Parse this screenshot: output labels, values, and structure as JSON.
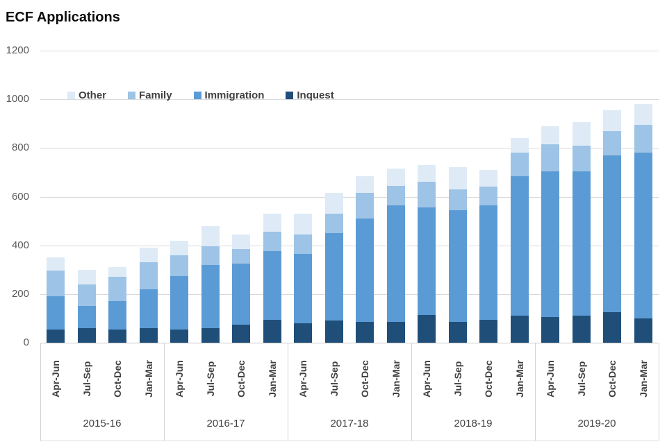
{
  "title": "ECF Applications",
  "colors": {
    "other": "#DEEBF7",
    "family": "#9DC3E6",
    "immigration": "#5B9BD5",
    "inquest": "#1F4E79",
    "gridline": "#D9D9D9",
    "axis_text": "#595959",
    "label_text": "#404040"
  },
  "chart_data": {
    "type": "bar",
    "stacked": true,
    "title": "ECF Applications",
    "xlabel": "",
    "ylabel": "",
    "ylim": [
      0,
      1200
    ],
    "yticks": [
      0,
      200,
      400,
      600,
      800,
      1000,
      1200
    ],
    "grid": true,
    "legend_position": "top-inside",
    "legend_order": [
      "Other",
      "Family",
      "Immigration",
      "Inquest"
    ],
    "groups": [
      {
        "label": "2015-16",
        "quarters": [
          "Apr-Jun",
          "Jul-Sep",
          "Oct-Dec",
          "Jan-Mar"
        ]
      },
      {
        "label": "2016-17",
        "quarters": [
          "Apr-Jun",
          "Jul-Sep",
          "Oct-Dec",
          "Jan-Mar"
        ]
      },
      {
        "label": "2017-18",
        "quarters": [
          "Apr-Jun",
          "Jul-Sep",
          "Oct-Dec",
          "Jan-Mar"
        ]
      },
      {
        "label": "2018-19",
        "quarters": [
          "Apr-Jun",
          "Jul-Sep",
          "Oct-Dec",
          "Jan-Mar"
        ]
      },
      {
        "label": "2019-20",
        "quarters": [
          "Apr-Jun",
          "Jul-Sep",
          "Oct-Dec",
          "Jan-Mar"
        ]
      }
    ],
    "series": [
      {
        "name": "Inquest",
        "color": "#1F4E79",
        "values": [
          55,
          60,
          55,
          60,
          55,
          60,
          75,
          95,
          80,
          90,
          85,
          85,
          115,
          85,
          95,
          110,
          105,
          110,
          125,
          100
        ]
      },
      {
        "name": "Immigration",
        "color": "#5B9BD5",
        "values": [
          135,
          90,
          115,
          160,
          220,
          260,
          250,
          280,
          285,
          360,
          425,
          480,
          440,
          460,
          470,
          575,
          600,
          595,
          645,
          680
        ]
      },
      {
        "name": "Family",
        "color": "#9DC3E6",
        "values": [
          105,
          90,
          100,
          110,
          85,
          75,
          60,
          80,
          80,
          80,
          105,
          80,
          105,
          85,
          75,
          95,
          110,
          105,
          100,
          115
        ]
      },
      {
        "name": "Other",
        "color": "#DEEBF7",
        "values": [
          55,
          60,
          40,
          60,
          60,
          85,
          60,
          75,
          85,
          85,
          70,
          70,
          70,
          90,
          70,
          60,
          75,
          95,
          85,
          85
        ]
      }
    ],
    "totals": [
      350,
      300,
      310,
      390,
      420,
      480,
      445,
      530,
      530,
      615,
      685,
      715,
      730,
      720,
      710,
      840,
      890,
      905,
      955,
      980
    ]
  }
}
